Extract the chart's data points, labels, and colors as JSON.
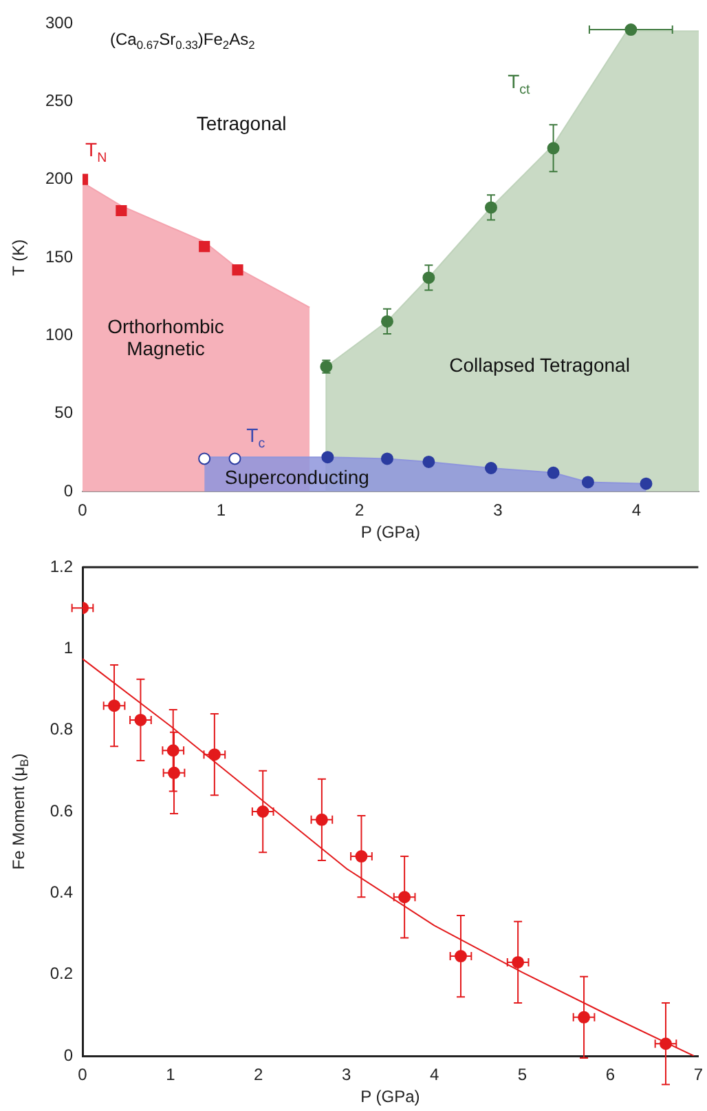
{
  "chart_data": [
    {
      "type": "scatter",
      "title": "(Ca$_{0.67}$Sr$_{0.33}$)Fe$_{2}$As$_{2}$",
      "xlabel": "P (GPa)",
      "ylabel": "T (K)",
      "xlim": [
        0,
        4.45
      ],
      "ylim": [
        0,
        300
      ],
      "xticks": [
        0,
        1,
        2,
        3,
        4
      ],
      "yticks": [
        0,
        50,
        100,
        150,
        200,
        250,
        300
      ],
      "grid": false,
      "legend": false,
      "series": [
        {
          "type": "area",
          "color": "#f4a3ae",
          "x": [
            0,
            0.28,
            0.88,
            1.12,
            1.64
          ],
          "values": [
            198,
            183,
            160,
            143,
            118
          ]
        },
        {
          "type": "area",
          "color": "#bfd3bb",
          "x": [
            1.76,
            1.76,
            2.2,
            2.5,
            2.95,
            3.4,
            3.93,
            4.45
          ],
          "values": [
            0,
            80,
            109,
            137,
            182,
            222,
            295,
            295
          ]
        },
        {
          "type": "area",
          "color": "#8e95dc",
          "x": [
            0.88,
            1.77,
            2.2,
            2.5,
            2.95,
            3.4,
            3.65,
            4.07
          ],
          "values": [
            22,
            22,
            21,
            19,
            15,
            12,
            6,
            5
          ]
        },
        {
          "type": "scatter",
          "marker": "square",
          "color": "#e0202a",
          "x": [
            0,
            0.28,
            0.88,
            1.12
          ],
          "values": [
            200,
            180,
            157,
            142
          ]
        },
        {
          "type": "scatter",
          "color": "#3f7a3f",
          "x": [
            1.76,
            2.2,
            2.5,
            2.95,
            3.4,
            3.96
          ],
          "values": [
            80,
            109,
            137,
            182,
            220,
            296
          ],
          "errors": [
            4,
            8,
            8,
            8,
            15,
            null
          ],
          "xerrors": [
            null,
            null,
            null,
            null,
            null,
            0.3
          ]
        },
        {
          "type": "scatter",
          "marker": "circle",
          "color": "#2b3ca0",
          "x": [
            1.77,
            2.2,
            2.5,
            2.95,
            3.4,
            3.65,
            4.07
          ],
          "values": [
            22,
            21,
            19,
            15,
            12,
            6,
            5
          ]
        },
        {
          "type": "scatter",
          "marker": "circle",
          "color": "#ffffff",
          "x": [
            0.88,
            1.1
          ],
          "values": [
            21,
            21
          ]
        }
      ],
      "annotations": [
        "T$_{N}$",
        "T$_{ct}$",
        "T$_{c}$",
        "Tetragonal",
        "Orthorhombic\nMagnetic",
        "Collapsed Tetragonal",
        "Superconducting"
      ]
    },
    {
      "type": "scatter",
      "xlabel": "P (GPa)",
      "ylabel": "Fe Moment (μ$_{B}$)",
      "xlim": [
        0,
        7
      ],
      "ylim": [
        0,
        1.2
      ],
      "xticks": [
        0,
        1,
        2,
        3,
        4,
        5,
        6,
        7
      ],
      "yticks": [
        0,
        0.2,
        0.4,
        0.6,
        0.8,
        1,
        1.2
      ],
      "grid": false,
      "legend": false,
      "series": [
        {
          "type": "line",
          "marker": "none",
          "color": "#e31a1c",
          "x": [
            0,
            1,
            2,
            3,
            4,
            5,
            6,
            6.95
          ],
          "values": [
            0.975,
            0.81,
            0.635,
            0.46,
            0.32,
            0.205,
            0.098,
            0
          ]
        },
        {
          "type": "scatter",
          "marker": "circle",
          "color": "#e31a1c",
          "x": [
            0,
            0.36,
            0.66,
            1.03,
            1.04,
            1.5,
            2.05,
            2.72,
            3.17,
            3.66,
            4.3,
            4.95,
            5.7,
            6.63
          ],
          "values": [
            1.1,
            0.86,
            0.825,
            0.75,
            0.695,
            0.74,
            0.6,
            0.58,
            0.49,
            0.39,
            0.245,
            0.23,
            0.095,
            0.03
          ],
          "errors": [
            null,
            0.1,
            0.1,
            0.1,
            0.1,
            0.1,
            0.1,
            0.1,
            0.1,
            0.1,
            0.1,
            0.1,
            0.1,
            0.1
          ],
          "xerrors": [
            0.12,
            0.12,
            0.12,
            0.12,
            0.12,
            0.12,
            0.12,
            0.12,
            0.12,
            0.12,
            0.12,
            0.12,
            0.12,
            0.12
          ]
        }
      ]
    }
  ]
}
